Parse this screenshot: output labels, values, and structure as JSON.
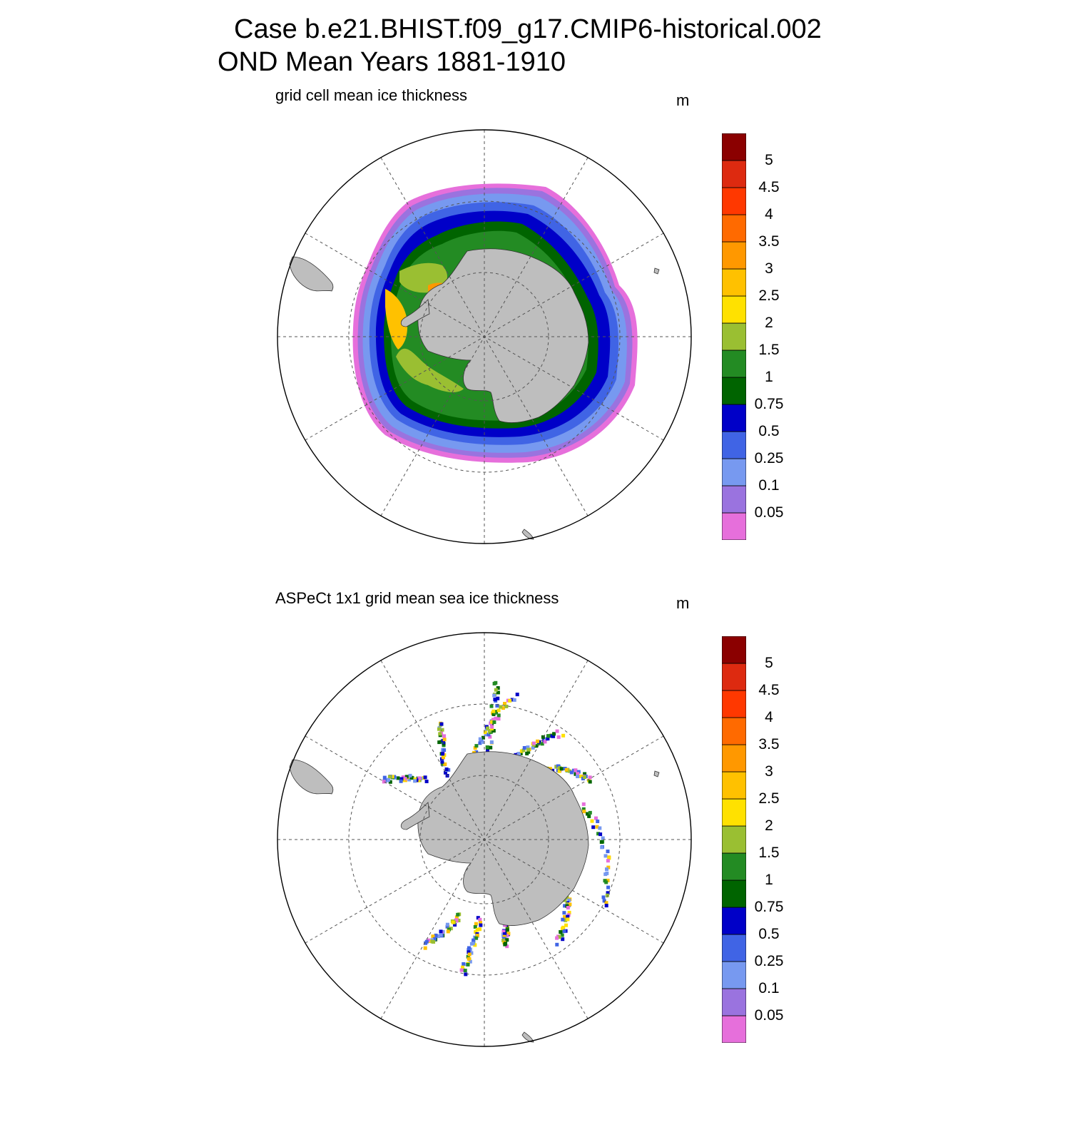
{
  "header": {
    "line1": "Case b.e21.BHIST.f09_g17.CMIP6-historical.002",
    "line2": "OND Mean   Years 1881-1910"
  },
  "colorbar": {
    "levels": [
      "0.05",
      "0.1",
      "0.25",
      "0.5",
      "0.75",
      "1",
      "1.5",
      "2",
      "2.5",
      "3",
      "3.5",
      "4",
      "4.5",
      "5"
    ],
    "colors": [
      "#E66FDB",
      "#9A73DF",
      "#7799F0",
      "#4064E5",
      "#0000C8",
      "#006400",
      "#238B23",
      "#9ABF32",
      "#FFE100",
      "#FFC100",
      "#FF9800",
      "#FF6A00",
      "#FF3800",
      "#DD2A10",
      "#8B0000"
    ]
  },
  "colors": {
    "land": "#BEBEBE",
    "grid": "#555555"
  },
  "panels": [
    {
      "title": "grid cell mean ice thickness",
      "unit": "m"
    },
    {
      "title": "ASPeCt 1x1 grid mean sea ice thickness",
      "unit": "m"
    }
  ]
}
